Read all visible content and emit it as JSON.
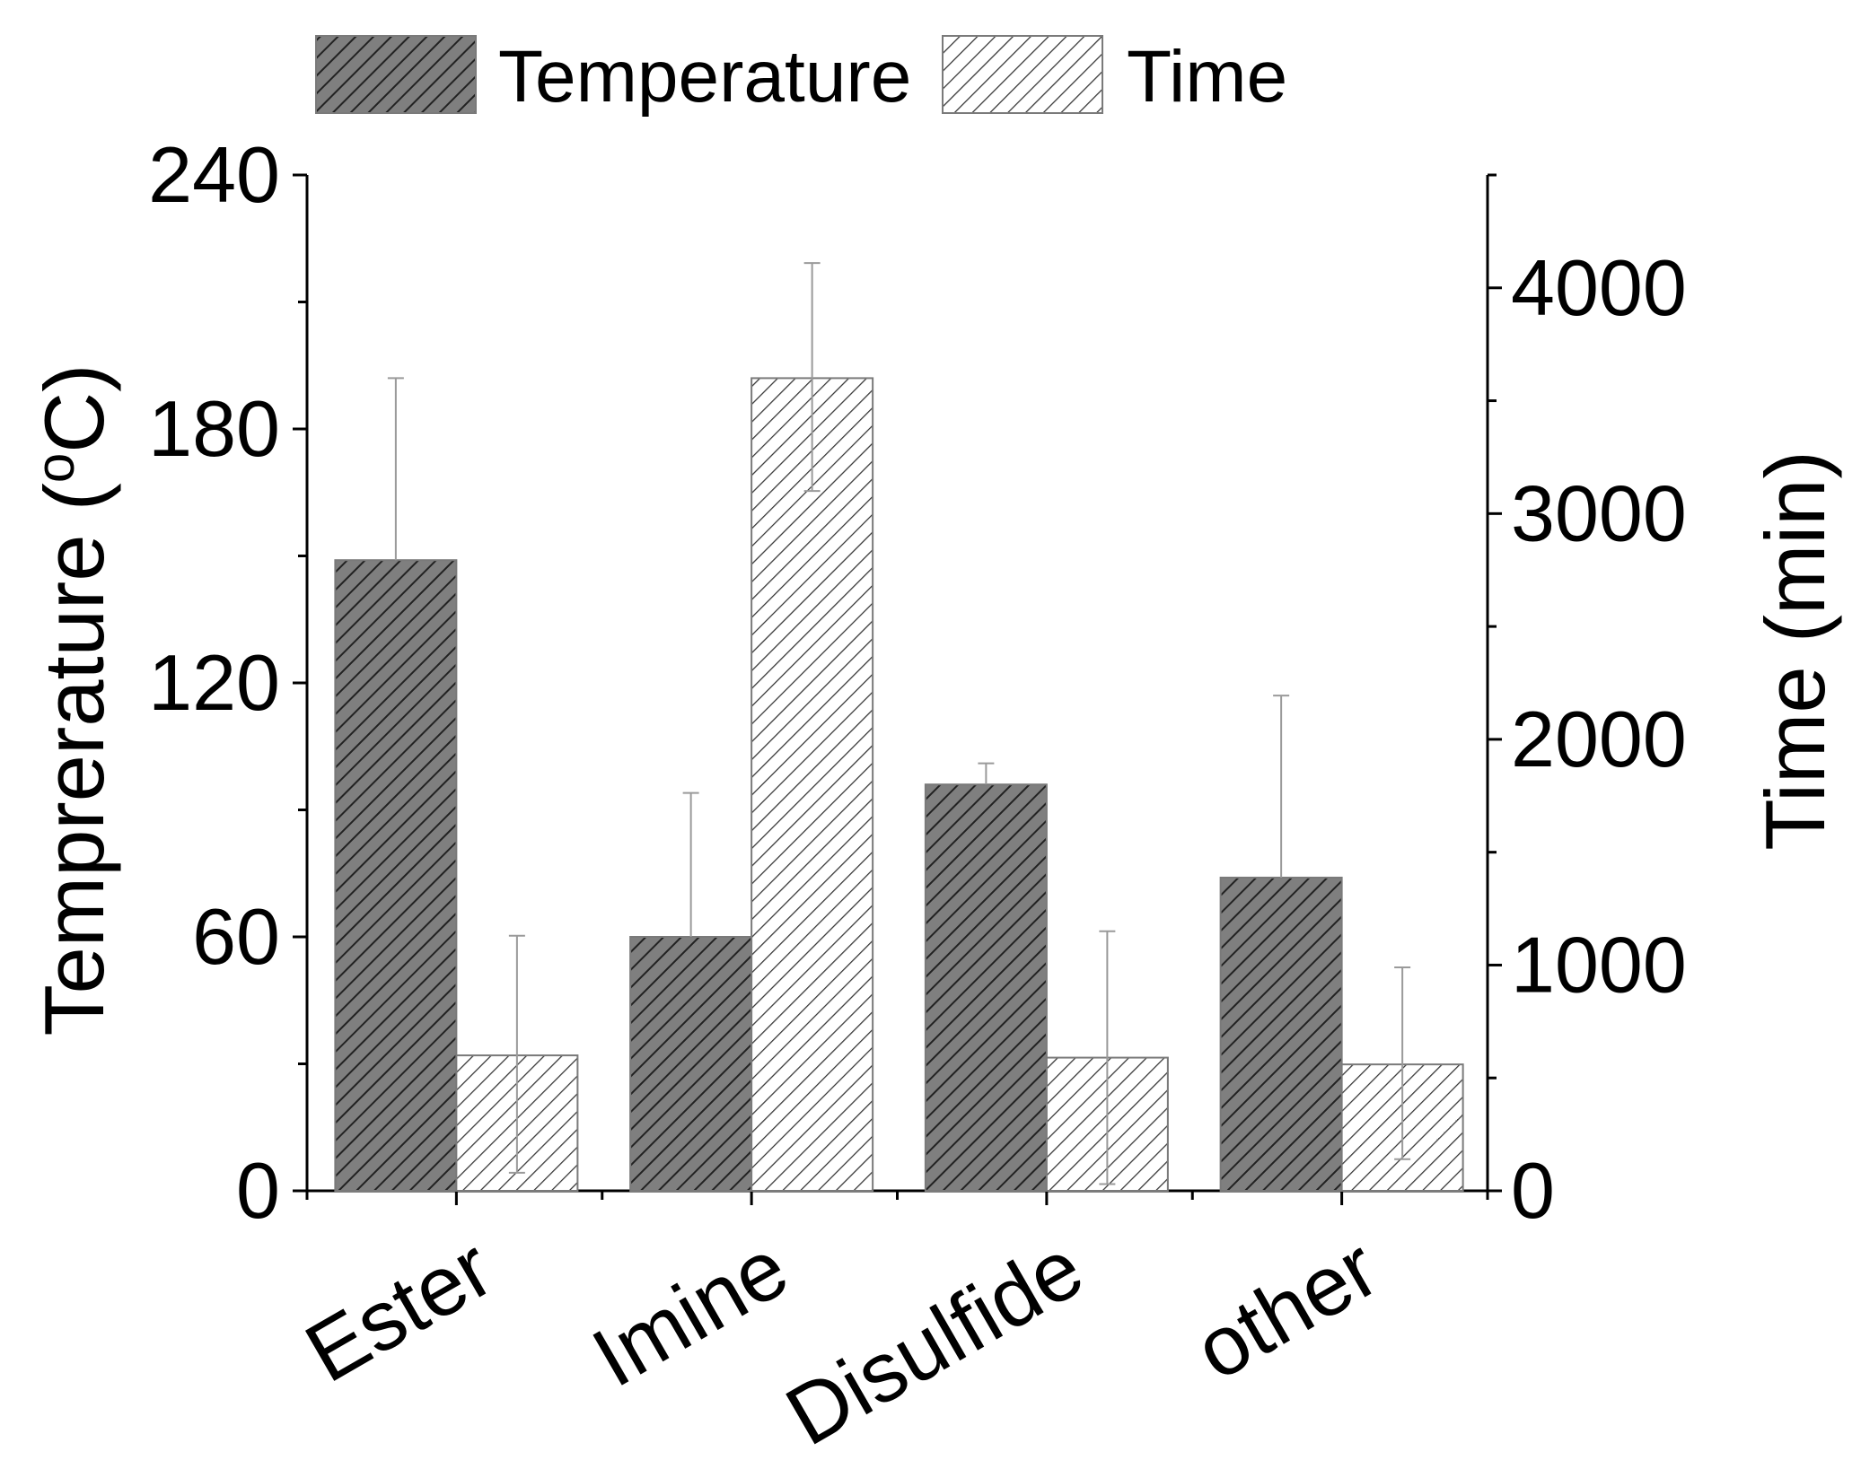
{
  "chart_data": {
    "type": "bar",
    "categories": [
      "Ester",
      "Imine",
      "Disulfide",
      "other"
    ],
    "series": [
      {
        "name": "Temperature",
        "axis": "left",
        "values": [
          149,
          60,
          96,
          74
        ],
        "error_upper": [
          192,
          94,
          101,
          117
        ],
        "fill": "dark-hatched"
      },
      {
        "name": "Time",
        "axis": "right",
        "values": [
          600,
          3600,
          590,
          560
        ],
        "error_upper": [
          1130,
          4110,
          1150,
          990
        ],
        "error_lower": [
          80,
          3100,
          30,
          140
        ],
        "fill": "light-hatched"
      }
    ],
    "ylabel": "Temprerature (°C)",
    "ylabel_parts": {
      "main": "Temprerature (",
      "sup": "o",
      "tail": "C)"
    },
    "y2label": "Time (min)",
    "xlabel": "",
    "ylim": [
      0,
      240
    ],
    "y2lim": [
      0,
      4500
    ],
    "yticks": [
      "0",
      "60",
      "120",
      "180",
      "240"
    ],
    "y2ticks": [
      "0",
      "1000",
      "2000",
      "3000",
      "4000"
    ],
    "grid": false,
    "legend_position": "top"
  },
  "colors": {
    "dark_fill": "#7f7f7f",
    "dark_hatch": "#222222",
    "light_fill": "#ffffff",
    "light_hatch": "#333333",
    "error_bar": "#9a9a9a"
  }
}
